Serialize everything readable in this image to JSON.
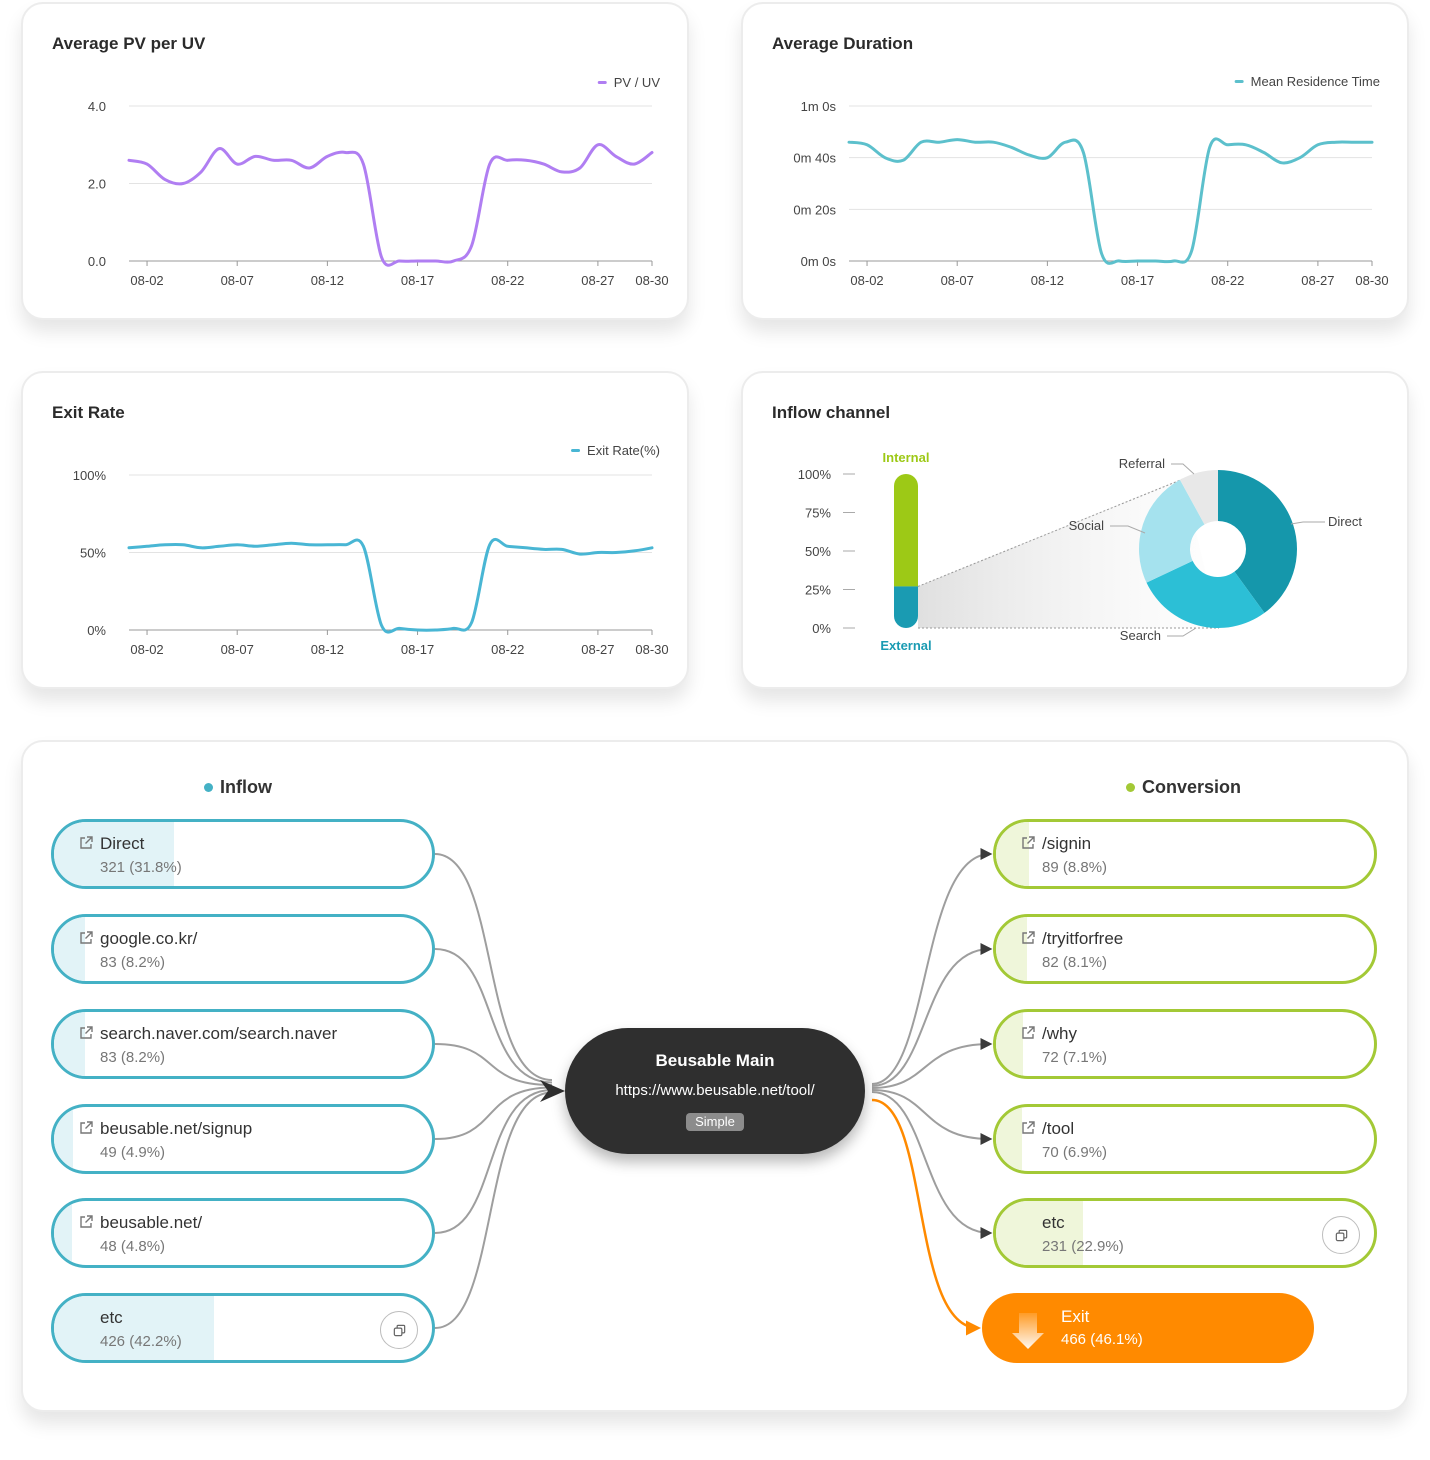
{
  "colors": {
    "pv_line": "#b07ef2",
    "duration_line": "#5cc0cc",
    "exit_line": "#49b6d4",
    "internal": "#9dc916",
    "external": "#1a9bb2",
    "inflow": "#44b1c5",
    "conversion": "#a3c936",
    "exit": "#ff8a00",
    "hub": "#2f2f2f"
  },
  "charts": {
    "pv": {
      "title": "Average PV per UV"
    },
    "duration": {
      "title": "Average Duration"
    },
    "exit": {
      "title": "Exit Rate"
    },
    "inflow": {
      "title": "Inflow channel"
    }
  },
  "chart_data": [
    {
      "type": "line",
      "title": "Average PV per UV",
      "x_ticks": [
        "08-02",
        "08-07",
        "08-12",
        "08-17",
        "08-22",
        "08-27",
        "08-30"
      ],
      "x": [
        "08-01",
        "08-02",
        "08-03",
        "08-04",
        "08-05",
        "08-06",
        "08-07",
        "08-08",
        "08-09",
        "08-10",
        "08-11",
        "08-12",
        "08-13",
        "08-14",
        "08-15",
        "08-16",
        "08-17",
        "08-18",
        "08-19",
        "08-20",
        "08-21",
        "08-22",
        "08-23",
        "08-24",
        "08-25",
        "08-26",
        "08-27",
        "08-28",
        "08-29",
        "08-30"
      ],
      "y_ticks": [
        "0.0",
        "2.0",
        "4.0"
      ],
      "ylim": [
        0,
        4
      ],
      "grid": true,
      "legend": "top-right",
      "series": [
        {
          "name": "PV / UV",
          "values": [
            2.6,
            2.5,
            2.1,
            2.0,
            2.3,
            2.9,
            2.5,
            2.7,
            2.6,
            2.6,
            2.4,
            2.7,
            2.8,
            2.5,
            0.1,
            0.0,
            0.0,
            0.0,
            0.0,
            0.4,
            2.5,
            2.6,
            2.6,
            2.5,
            2.3,
            2.4,
            3.0,
            2.7,
            2.5,
            2.8
          ]
        }
      ]
    },
    {
      "type": "line",
      "title": "Average Duration",
      "x_ticks": [
        "08-02",
        "08-07",
        "08-12",
        "08-17",
        "08-22",
        "08-27",
        "08-30"
      ],
      "x": [
        "08-01",
        "08-02",
        "08-03",
        "08-04",
        "08-05",
        "08-06",
        "08-07",
        "08-08",
        "08-09",
        "08-10",
        "08-11",
        "08-12",
        "08-13",
        "08-14",
        "08-15",
        "08-16",
        "08-17",
        "08-18",
        "08-19",
        "08-20",
        "08-21",
        "08-22",
        "08-23",
        "08-24",
        "08-25",
        "08-26",
        "08-27",
        "08-28",
        "08-29",
        "08-30"
      ],
      "y_ticks": [
        "0m 0s",
        "0m 20s",
        "0m 40s",
        "1m 0s"
      ],
      "ylim": [
        0,
        60
      ],
      "grid": true,
      "legend": "top-right",
      "series": [
        {
          "name": "Mean Residence Time",
          "values": [
            46,
            45,
            40,
            39,
            46,
            46,
            47,
            46,
            46,
            44,
            41,
            40,
            46,
            42,
            3,
            0,
            0,
            0,
            0,
            4,
            44,
            45,
            45,
            42,
            38,
            40,
            45,
            46,
            46,
            46
          ]
        }
      ]
    },
    {
      "type": "line",
      "title": "Exit Rate",
      "x_ticks": [
        "08-02",
        "08-07",
        "08-12",
        "08-17",
        "08-22",
        "08-27",
        "08-30"
      ],
      "x": [
        "08-01",
        "08-02",
        "08-03",
        "08-04",
        "08-05",
        "08-06",
        "08-07",
        "08-08",
        "08-09",
        "08-10",
        "08-11",
        "08-12",
        "08-13",
        "08-14",
        "08-15",
        "08-16",
        "08-17",
        "08-18",
        "08-19",
        "08-20",
        "08-21",
        "08-22",
        "08-23",
        "08-24",
        "08-25",
        "08-26",
        "08-27",
        "08-28",
        "08-29",
        "08-30"
      ],
      "y_ticks": [
        "0%",
        "50%",
        "100%"
      ],
      "ylim": [
        0,
        100
      ],
      "grid": true,
      "legend": "top-right",
      "series": [
        {
          "name": "Exit Rate(%)",
          "values": [
            53,
            54,
            55,
            55,
            53,
            54,
            55,
            54,
            55,
            56,
            55,
            55,
            55,
            54,
            3,
            1,
            0,
            0,
            1,
            5,
            55,
            54,
            53,
            52,
            52,
            49,
            50,
            50,
            51,
            53
          ]
        }
      ]
    },
    {
      "type": "bar",
      "title": "Inflow channel",
      "y_ticks": [
        "0%",
        "25%",
        "50%",
        "75%",
        "100%"
      ],
      "ylim": [
        0,
        100
      ],
      "stack": [
        {
          "name": "Internal",
          "value": 73
        },
        {
          "name": "External",
          "value": 27
        }
      ]
    },
    {
      "type": "pie",
      "title": "Inflow channel",
      "donut": true,
      "categories": [
        "Direct",
        "Search",
        "Social",
        "Referral"
      ],
      "values": [
        40,
        28,
        24,
        8
      ],
      "colors": [
        "#1597ab",
        "#2cbfd6",
        "#a5e2ee",
        "#e8e8e8"
      ]
    }
  ],
  "flow": {
    "inflow_label": "Inflow",
    "conversion_label": "Conversion",
    "inflow": [
      {
        "name": "Direct",
        "value": "321 (31.8%)",
        "share": 0.318,
        "external": true
      },
      {
        "name": "google.co.kr/",
        "value": "83 (8.2%)",
        "share": 0.082,
        "external": true
      },
      {
        "name": "search.naver.com/search.naver",
        "value": "83 (8.2%)",
        "share": 0.082,
        "external": true
      },
      {
        "name": "beusable.net/signup",
        "value": "49 (4.9%)",
        "share": 0.049,
        "external": true
      },
      {
        "name": "beusable.net/",
        "value": "48 (4.8%)",
        "share": 0.048,
        "external": true
      },
      {
        "name": "etc",
        "value": "426 (42.2%)",
        "share": 0.422,
        "external": false
      }
    ],
    "conversion": [
      {
        "name": "/signin",
        "value": "89 (8.8%)",
        "share": 0.088,
        "external": true
      },
      {
        "name": "/tryitforfree",
        "value": "82 (8.1%)",
        "share": 0.081,
        "external": true
      },
      {
        "name": "/why",
        "value": "72 (7.1%)",
        "share": 0.071,
        "external": true
      },
      {
        "name": "/tool",
        "value": "70 (6.9%)",
        "share": 0.069,
        "external": true
      },
      {
        "name": "etc",
        "value": "231 (22.9%)",
        "share": 0.229,
        "external": false
      }
    ],
    "hub": {
      "title": "Beusable Main",
      "url": "https://www.beusable.net/tool/",
      "badge": "Simple"
    },
    "exit": {
      "name": "Exit",
      "value": "466 (46.1%)",
      "share": 0.461
    }
  }
}
